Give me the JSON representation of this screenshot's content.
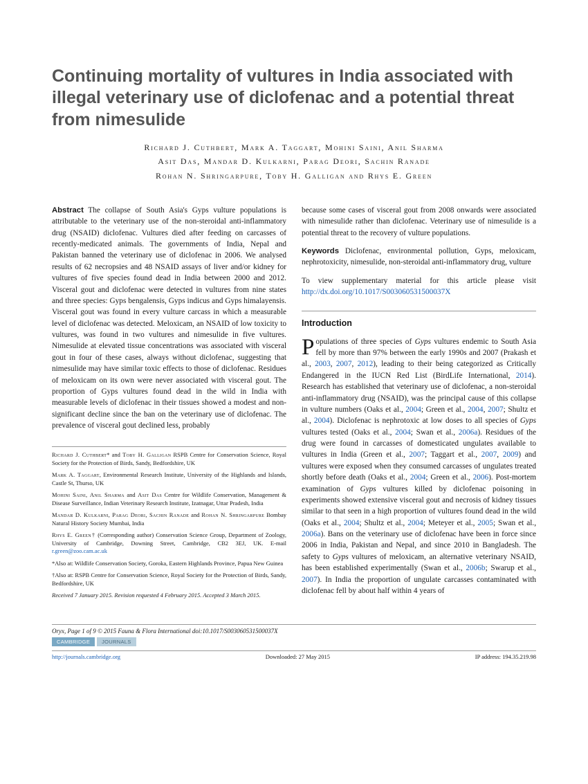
{
  "title": "Continuing mortality of vultures in India associated with illegal veterinary use of diclofenac and a potential threat from nimesulide",
  "authors_line1": "Richard J. Cuthbert, Mark A. Taggart, Mohini Saini, Anil Sharma",
  "authors_line2": "Asit Das, Mandar D. Kulkarni, Parag Deori, Sachin Ranade",
  "authors_line3": "Rohan N. Shringarpure, Toby H. Galligan and Rhys E. Green",
  "abstract_label": "Abstract",
  "abstract_text": "The collapse of South Asia's Gyps vulture populations is attributable to the veterinary use of the non-steroidal anti-inflammatory drug (NSAID) diclofenac. Vultures died after feeding on carcasses of recently-medicated animals. The governments of India, Nepal and Pakistan banned the veterinary use of diclofenac in 2006. We analysed results of 62 necropsies and 48 NSAID assays of liver and/or kidney for vultures of five species found dead in India between 2000 and 2012. Visceral gout and diclofenac were detected in vultures from nine states and three species: Gyps bengalensis, Gyps indicus and Gyps himalayensis. Visceral gout was found in every vulture carcass in which a measurable level of diclofenac was detected. Meloxicam, an NSAID of low toxicity to vultures, was found in two vultures and nimesulide in five vultures. Nimesulide at elevated tissue concentrations was associated with visceral gout in four of these cases, always without diclofenac, suggesting that nimesulide may have similar toxic effects to those of diclofenac. Residues of meloxicam on its own were never associated with visceral gout. The proportion of Gyps vultures found dead in the wild in India with measurable levels of diclofenac in their tissues showed a modest and non-significant decline since the ban on the veterinary use of diclofenac. The prevalence of visceral gout declined less, probably",
  "abstract_cont": "because some cases of visceral gout from 2008 onwards were associated with nimesulide rather than diclofenac. Veterinary use of nimesulide is a potential threat to the recovery of vulture populations.",
  "keywords_label": "Keywords",
  "keywords_text": "Diclofenac, environmental pollution, Gyps, meloxicam, nephrotoxicity, nimesulide, non-steroidal anti-inflammatory drug, vulture",
  "supp_text": "To view supplementary material for this article please visit ",
  "supp_link": "http://dx.doi.org/10.1017/S003060531500037X",
  "intro_heading": "Introduction",
  "intro_dropcap": "P",
  "intro_text": "opulations of three species of Gyps vultures endemic to South Asia fell by more than 97% between the early 1990s and 2007 (Prakash et al., 2003, 2007, 2012), leading to their being categorized as Critically Endangered in the IUCN Red List (BirdLife International, 2014). Research has established that veterinary use of diclofenac, a non-steroidal anti-inflammatory drug (NSAID), was the principal cause of this collapse in vulture numbers (Oaks et al., 2004; Green et al., 2004, 2007; Shultz et al., 2004). Diclofenac is nephrotoxic at low doses to all species of Gyps vultures tested (Oaks et al., 2004; Swan et al., 2006a). Residues of the drug were found in carcasses of domesticated ungulates available to vultures in India (Green et al., 2007; Taggart et al., 2007, 2009) and vultures were exposed when they consumed carcasses of ungulates treated shortly before death (Oaks et al., 2004; Green et al., 2006). Post-mortem examination of Gyps vultures killed by diclofenac poisoning in experiments showed extensive visceral gout and necrosis of kidney tissues similar to that seen in a high proportion of vultures found dead in the wild (Oaks et al., 2004; Shultz et al., 2004; Meteyer et al., 2005; Swan et al., 2006a). Bans on the veterinary use of diclofenac have been in force since 2006 in India, Pakistan and Nepal, and since 2010 in Bangladesh. The safety to Gyps vultures of meloxicam, an alternative veterinary NSAID, has been established experimentally (Swan et al., 2006b; Swarup et al., 2007). In India the proportion of ungulate carcasses contaminated with diclofenac fell by about half within 4 years of",
  "aff": {
    "a1": "Richard J. Cuthbert* and Toby H. Galligan RSPB Centre for Conservation Science, Royal Society for the Protection of Birds, Sandy, Bedfordshire, UK",
    "a2": "Mark A. Taggart, Environmental Research Institute, University of the Highlands and Islands, Castle St, Thurso, UK",
    "a3": "Mohini Saini, Anil Sharma and Asit Das Centre for Wildlife Conservation, Management & Disease Surveillance, Indian Veterinary Research Institute, Izatnagar, Uttar Pradesh, India",
    "a4": "Mandar D. Kulkarni, Parag Deori, Sachin Ranade and Rohan N. Shringarpure Bombay Natural History Society Mumbai, India",
    "a5_pre": "Rhys E. Green† (Corresponding author) Conservation Science Group, Department of Zoology, University of Cambridge, Downing Street, Cambridge, CB2 3EJ, UK. E-mail ",
    "a5_email": "r.green@zoo.cam.ac.uk",
    "a6": "*Also at: Wildlife Conservation Society, Goroka, Eastern Highlands Province, Papua New Guinea",
    "a7": "†Also at: RSPB Centre for Conservation Science, Royal Society for the Protection of Birds, Sandy, Bedfordshire, UK",
    "a8": "Received 7 January 2015. Revision requested 4 February 2015. Accepted 3 March 2015."
  },
  "footer": {
    "citation": "Oryx, Page 1 of 9 © 2015 Fauna & Flora International    doi:10.1017/S003060531500037X",
    "badge1": "CAMBRIDGE",
    "badge2": "JOURNALS",
    "link": "http://journals.cambridge.org",
    "downloaded": "Downloaded: 27 May 2015",
    "ip": "IP address: 194.35.219.98"
  }
}
